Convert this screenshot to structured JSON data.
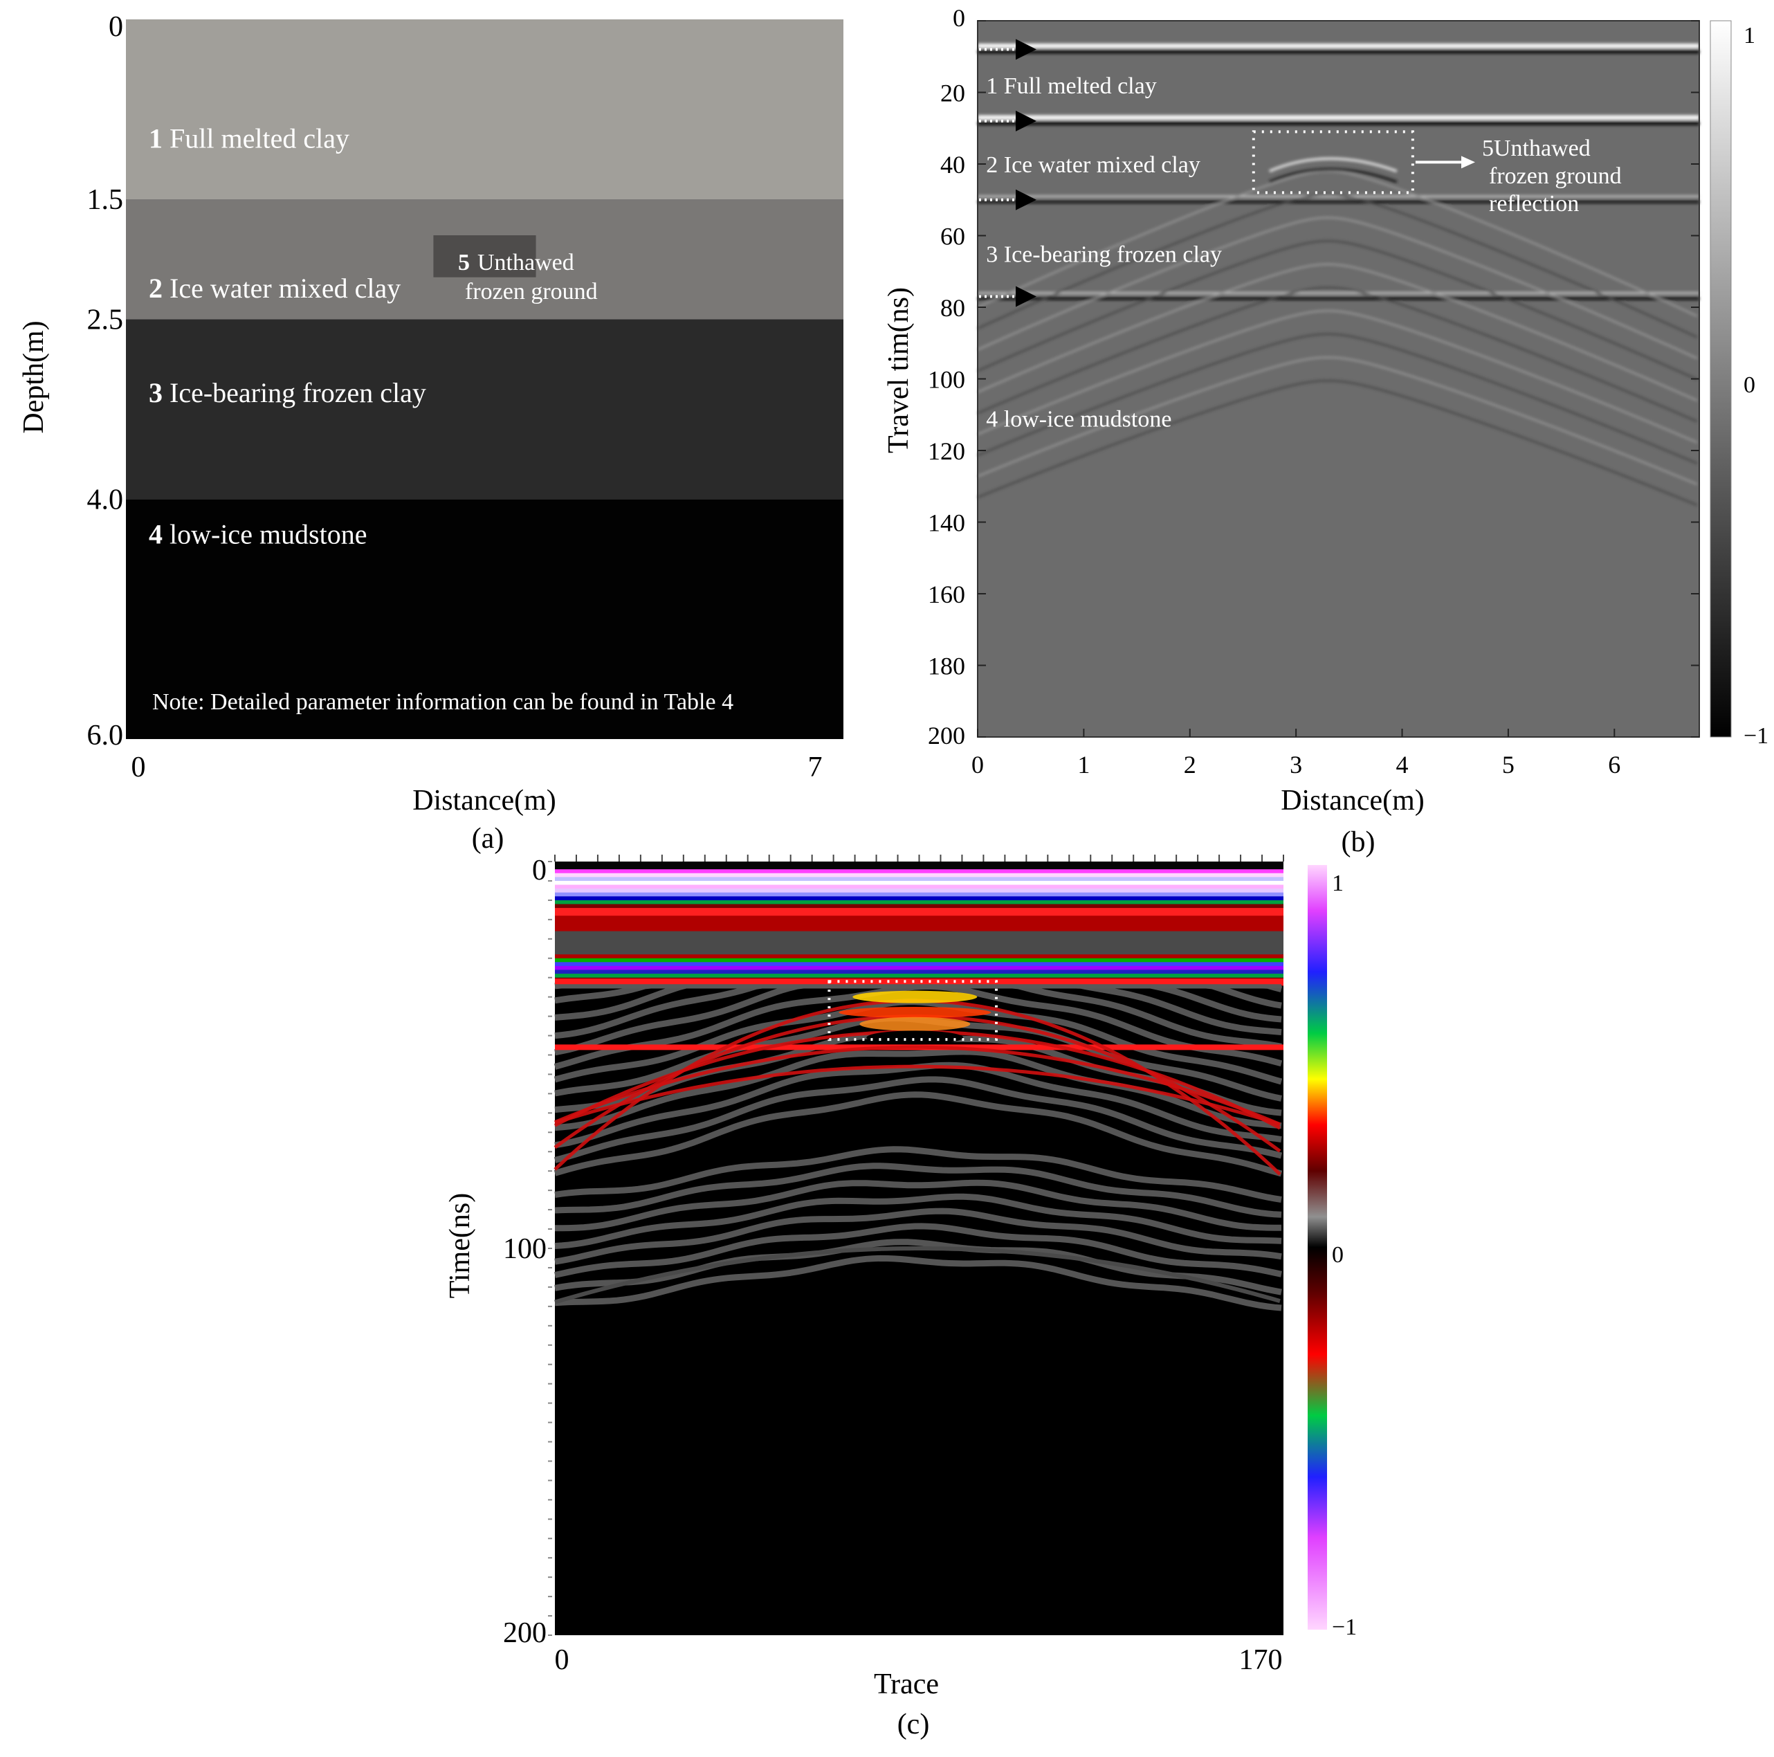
{
  "chart_data": [
    {
      "panel": "(a)",
      "type": "table",
      "xlabel": "Distance(m)",
      "ylabel": "Depth(m)",
      "xlim": [
        0,
        7
      ],
      "ylim": [
        0,
        6.0
      ],
      "y_reversed": true,
      "xticks": [
        "0",
        "7"
      ],
      "yticks": [
        {
          "value": 0,
          "label": "0"
        },
        {
          "value": 1.5,
          "label": "1.5"
        },
        {
          "value": 2.5,
          "label": "2.5"
        },
        {
          "value": 4.0,
          "label": "4.0"
        },
        {
          "value": 6.0,
          "label": "6.0"
        }
      ],
      "layers": [
        {
          "num": "1",
          "name": "Full melted clay",
          "top": 0,
          "bottom": 1.5,
          "color": "#a19f9a"
        },
        {
          "num": "2",
          "name": "Ice water mixed clay",
          "top": 1.5,
          "bottom": 2.5,
          "color": "#7a7876"
        },
        {
          "num": "3",
          "name": "Ice-bearing frozen clay",
          "top": 2.5,
          "bottom": 4.0,
          "color": "#2a2a2a"
        },
        {
          "num": "4",
          "name": "low-ice mudstone",
          "top": 4.0,
          "bottom": 6.0,
          "color": "#020202"
        }
      ],
      "block": {
        "num": "5",
        "line1": "Unthawed",
        "line2": "frozen ground",
        "x0": 3.0,
        "x1": 4.0,
        "top": 1.8,
        "bottom": 2.15,
        "color": "#4e4c4b"
      },
      "note": "Note: Detailed parameter information can be found in Table 4"
    },
    {
      "panel": "(b)",
      "type": "heatmap",
      "xlabel": "Distance(m)",
      "ylabel": "Travel tim(ns)",
      "xlim": [
        0,
        6.8
      ],
      "ylim": [
        0,
        200
      ],
      "y_reversed": true,
      "xticks": [
        0,
        1,
        2,
        3,
        4,
        5,
        6
      ],
      "yticks": [
        0,
        20,
        40,
        60,
        80,
        100,
        120,
        140,
        160,
        180,
        200
      ],
      "colorbar": {
        "min": -1,
        "max": 1,
        "ticks": [
          "1",
          "0",
          "−1"
        ],
        "colormap": "gray"
      },
      "reflections_ns": [
        8,
        28,
        50,
        77
      ],
      "hyperbola_apex": {
        "x": 3.3,
        "t": 42
      },
      "labels": [
        {
          "text": "1 Full melted clay",
          "x": 0.08,
          "t": 18
        },
        {
          "text": "2 Ice water mixed clay",
          "x": 0.08,
          "t": 40
        },
        {
          "text": "3 Ice-bearing frozen clay",
          "x": 0.08,
          "t": 65
        },
        {
          "text": "4 low-ice mudstone",
          "x": 0.08,
          "t": 111
        }
      ],
      "box": {
        "x0": 2.6,
        "x1": 4.1,
        "t0": 31,
        "t1": 48
      },
      "annotation": {
        "line1": "5Unthawed",
        "line2": "frozen ground",
        "line3": "reflection"
      }
    },
    {
      "panel": "(c)",
      "type": "heatmap",
      "xlabel": "Trace",
      "ylabel": "Time(ns)",
      "xlim": [
        0,
        170
      ],
      "ylim": [
        0,
        200
      ],
      "y_reversed": true,
      "xticks": [
        "0",
        "170"
      ],
      "yticks": [
        {
          "value": 0,
          "label": "0"
        },
        {
          "value": 100,
          "label": "100"
        },
        {
          "value": 200,
          "label": "200"
        }
      ],
      "colorbar": {
        "min": -1,
        "max": 1,
        "ticks": [
          "1",
          "0",
          "−1"
        ],
        "colormap": "seismic-rainbow"
      },
      "box": {
        "x0": 64,
        "x1": 103,
        "t0": 31,
        "t1": 46
      }
    }
  ]
}
